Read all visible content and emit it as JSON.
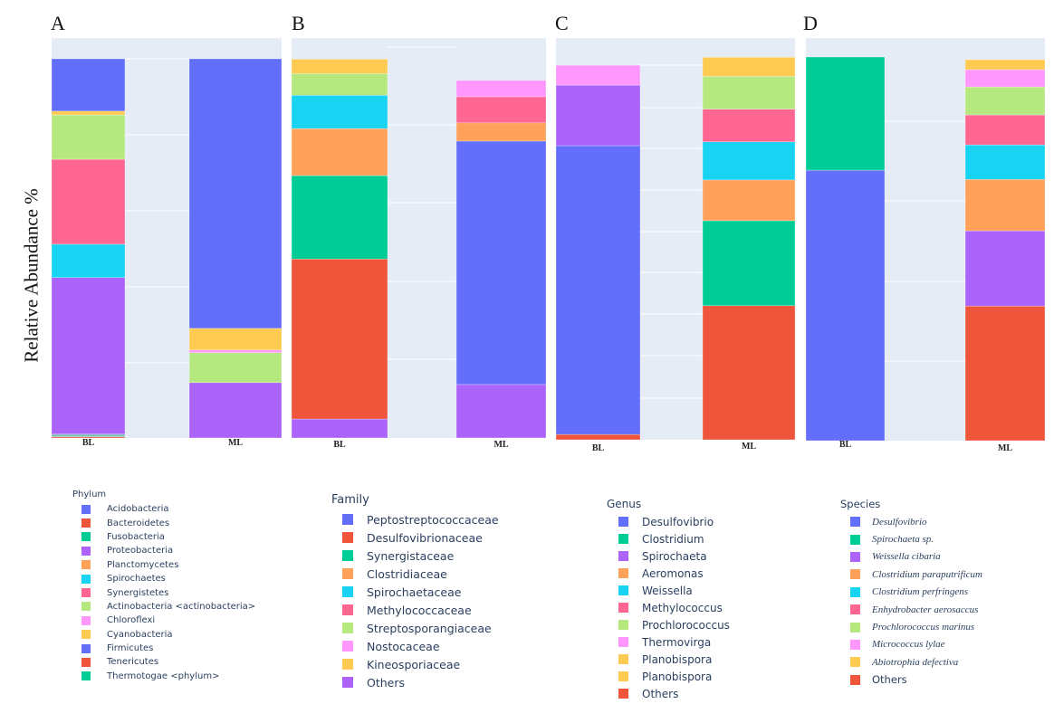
{
  "ylabel": "Relative Abundance %",
  "chart_data": [
    {
      "type": "bar",
      "stacked": true,
      "panel": "A",
      "title": "A",
      "legend_title": "Phylum",
      "categories": [
        "BL",
        "ML"
      ],
      "ylabel": "Relative Abundance %",
      "ylim": [
        0,
        100
      ],
      "grid": true,
      "legend": [
        {
          "name": "Acidobacteria",
          "color": "#636efa"
        },
        {
          "name": "Bacteroidetes",
          "color": "#ef553b"
        },
        {
          "name": "Fusobacteria",
          "color": "#00cc96"
        },
        {
          "name": "Proteobacteria",
          "color": "#ab63fa"
        },
        {
          "name": "Planctomycetes",
          "color": "#ffa15a"
        },
        {
          "name": "Spirochaetes",
          "color": "#19d3f3"
        },
        {
          "name": "Synergistetes",
          "color": "#ff6692"
        },
        {
          "name": "Actinobacteria <actinobacteria>",
          "color": "#b6e880"
        },
        {
          "name": "Chloroflexi",
          "color": "#ff97ff"
        },
        {
          "name": "Cyanobacteria",
          "color": "#fecb52"
        },
        {
          "name": "Firmicutes",
          "color": "#636efa"
        },
        {
          "name": "Tenericutes",
          "color": "#ef553b"
        },
        {
          "name": "Thermotogae <phylum>",
          "color": "#00cc96"
        }
      ],
      "series": [
        {
          "name": "Tenericutes",
          "color": "#ef553b",
          "values": [
            0.3,
            0
          ]
        },
        {
          "name": "Thermotogae <phylum>",
          "color": "#7fbfb8",
          "values": [
            0.7,
            0
          ]
        },
        {
          "name": "Proteobacteria",
          "color": "#ab63fa",
          "values": [
            41.3,
            14.6
          ]
        },
        {
          "name": "Spirochaetes",
          "color": "#19d3f3",
          "values": [
            8.8,
            0
          ]
        },
        {
          "name": "Synergistetes",
          "color": "#ff6692",
          "values": [
            22.4,
            0
          ]
        },
        {
          "name": "Actinobacteria <actinobacteria>",
          "color": "#b6e880",
          "values": [
            11.7,
            7.9
          ]
        },
        {
          "name": "Chloroflexi",
          "color": "#ff97ff",
          "values": [
            0,
            0.7
          ]
        },
        {
          "name": "Cyanobacteria",
          "color": "#fecb52",
          "values": [
            1.0,
            5.7
          ]
        },
        {
          "name": "Firmicutes",
          "color": "#636efa",
          "values": [
            13.8,
            71.1
          ]
        }
      ]
    },
    {
      "type": "bar",
      "stacked": true,
      "panel": "B",
      "title": "B",
      "legend_title": "Family",
      "categories": [
        "BL",
        "ML"
      ],
      "ylim": [
        0,
        100
      ],
      "grid": true,
      "legend": [
        {
          "name": "Peptostreptococcaceae",
          "color": "#636efa"
        },
        {
          "name": "Desulfovibrionaceae",
          "color": "#ef553b"
        },
        {
          "name": "Synergistaceae",
          "color": "#00cc96"
        },
        {
          "name": "Clostridiaceae",
          "color": "#ffa15a"
        },
        {
          "name": "Spirochaetaceae",
          "color": "#19d3f3"
        },
        {
          "name": "Methylococcaceae",
          "color": "#ff6692"
        },
        {
          "name": "Streptosporangiaceae",
          "color": "#b6e880"
        },
        {
          "name": "Nostocaceae",
          "color": "#ff97ff"
        },
        {
          "name": "Kineosporiaceae",
          "color": "#fecb52"
        },
        {
          "name": "Others",
          "color": "#ab63fa"
        }
      ],
      "series": [
        {
          "name": "Others",
          "color": "#ab63fa",
          "values": [
            5.0,
            14.1
          ]
        },
        {
          "name": "Desulfovibrionaceae",
          "color": "#ef553b",
          "values": [
            42.2,
            0
          ]
        },
        {
          "name": "Peptostreptococcaceae",
          "color": "#636efa",
          "values": [
            0,
            64.2
          ]
        },
        {
          "name": "Synergistaceae",
          "color": "#00cc96",
          "values": [
            22.0,
            0
          ]
        },
        {
          "name": "Clostridiaceae",
          "color": "#ffa15a",
          "values": [
            12.4,
            4.8
          ]
        },
        {
          "name": "Spirochaetaceae",
          "color": "#19d3f3",
          "values": [
            8.8,
            0
          ]
        },
        {
          "name": "Methylococcaceae",
          "color": "#ff6692",
          "values": [
            0,
            6.9
          ]
        },
        {
          "name": "Streptosporangiaceae",
          "color": "#b6e880",
          "values": [
            5.7,
            0
          ]
        },
        {
          "name": "Nostocaceae",
          "color": "#ff97ff",
          "values": [
            0,
            4.3
          ]
        },
        {
          "name": "Kineosporiaceae",
          "color": "#fecb52",
          "values": [
            3.8,
            0
          ]
        }
      ]
    },
    {
      "type": "bar",
      "stacked": true,
      "panel": "C",
      "title": "C",
      "legend_title": "Genus",
      "categories": [
        "BL",
        "ML"
      ],
      "ylim": [
        0,
        100
      ],
      "grid": true,
      "legend": [
        {
          "name": "Desulfovibrio",
          "color": "#636efa"
        },
        {
          "name": "Clostridium",
          "color": "#00cc96"
        },
        {
          "name": "Spirochaeta",
          "color": "#ab63fa"
        },
        {
          "name": "Aeromonas",
          "color": "#ffa15a"
        },
        {
          "name": "Weissella",
          "color": "#19d3f3"
        },
        {
          "name": "Methylococcus",
          "color": "#ff6692"
        },
        {
          "name": "Prochlorococcus",
          "color": "#b6e880"
        },
        {
          "name": "Thermovirga",
          "color": "#ff97ff"
        },
        {
          "name": "Planobispora",
          "color": "#fecb52"
        },
        {
          "name": "Planobispora",
          "color": "#fecb52"
        },
        {
          "name": "Others",
          "color": "#ef553b"
        }
      ],
      "series": [
        {
          "name": "Others",
          "color": "#ef553b",
          "values": [
            1.4,
            35.2
          ]
        },
        {
          "name": "Desulfovibrio",
          "color": "#636efa",
          "values": [
            75.8,
            0
          ]
        },
        {
          "name": "Clostridium",
          "color": "#00cc96",
          "values": [
            0,
            22.3
          ]
        },
        {
          "name": "Spirochaeta",
          "color": "#ab63fa",
          "values": [
            15.9,
            0
          ]
        },
        {
          "name": "Aeromonas",
          "color": "#ffa15a",
          "values": [
            0,
            10.7
          ]
        },
        {
          "name": "Weissella",
          "color": "#19d3f3",
          "values": [
            0,
            10.0
          ]
        },
        {
          "name": "Methylococcus",
          "color": "#ff6692",
          "values": [
            0,
            8.6
          ]
        },
        {
          "name": "Prochlorococcus",
          "color": "#b6e880",
          "values": [
            0,
            8.6
          ]
        },
        {
          "name": "Thermovirga",
          "color": "#ff97ff",
          "values": [
            5.2,
            0
          ]
        },
        {
          "name": "Planobispora",
          "color": "#fecb52",
          "values": [
            0,
            5.0
          ]
        }
      ]
    },
    {
      "type": "bar",
      "stacked": true,
      "panel": "D",
      "title": "D",
      "legend_title": "Species",
      "categories": [
        "BL",
        "ML"
      ],
      "ylim": [
        0,
        100
      ],
      "grid": true,
      "legend": [
        {
          "name": "Desulfovibrio",
          "color": "#636efa",
          "italic": true
        },
        {
          "name": "Spirochaeta sp.",
          "color": "#00cc96",
          "italic": true
        },
        {
          "name": "Weissella cibaria",
          "color": "#ab63fa",
          "italic": true
        },
        {
          "name": "Clostridium paraputrificum",
          "color": "#ffa15a",
          "italic": true
        },
        {
          "name": "Clostridium perfringens",
          "color": "#19d3f3",
          "italic": true
        },
        {
          "name": "Enhydrobacter aerosaccus",
          "color": "#ff6692",
          "italic": true
        },
        {
          "name": "Prochlorococcus marinus",
          "color": "#b6e880",
          "italic": true
        },
        {
          "name": "Micrococcus lylae",
          "color": "#ff97ff",
          "italic": true
        },
        {
          "name": "Abiotrophia defectiva",
          "color": "#fecb52",
          "italic": true
        },
        {
          "name": "Others",
          "color": "#ef553b",
          "italic": false
        }
      ],
      "series": [
        {
          "name": "Others",
          "color": "#ef553b",
          "values": [
            0,
            35.1
          ]
        },
        {
          "name": "Desulfovibrio",
          "color": "#636efa",
          "values": [
            70.5,
            0
          ]
        },
        {
          "name": "Weissella cibaria",
          "color": "#ab63fa",
          "values": [
            0,
            19.6
          ]
        },
        {
          "name": "Spirochaeta sp.",
          "color": "#00cc96",
          "values": [
            29.5,
            0
          ]
        },
        {
          "name": "Clostridium paraputrificum",
          "color": "#ffa15a",
          "values": [
            0,
            13.4
          ]
        },
        {
          "name": "Clostridium perfringens",
          "color": "#19d3f3",
          "values": [
            0,
            9.0
          ]
        },
        {
          "name": "Enhydrobacter aerosaccus",
          "color": "#ff6692",
          "values": [
            0,
            7.8
          ]
        },
        {
          "name": "Prochlorococcus marinus",
          "color": "#b6e880",
          "values": [
            0,
            7.3
          ]
        },
        {
          "name": "Micrococcus lylae",
          "color": "#ff97ff",
          "values": [
            0,
            4.5
          ]
        },
        {
          "name": "Abiotrophia defectiva",
          "color": "#fecb52",
          "values": [
            0,
            2.6
          ]
        }
      ]
    }
  ]
}
